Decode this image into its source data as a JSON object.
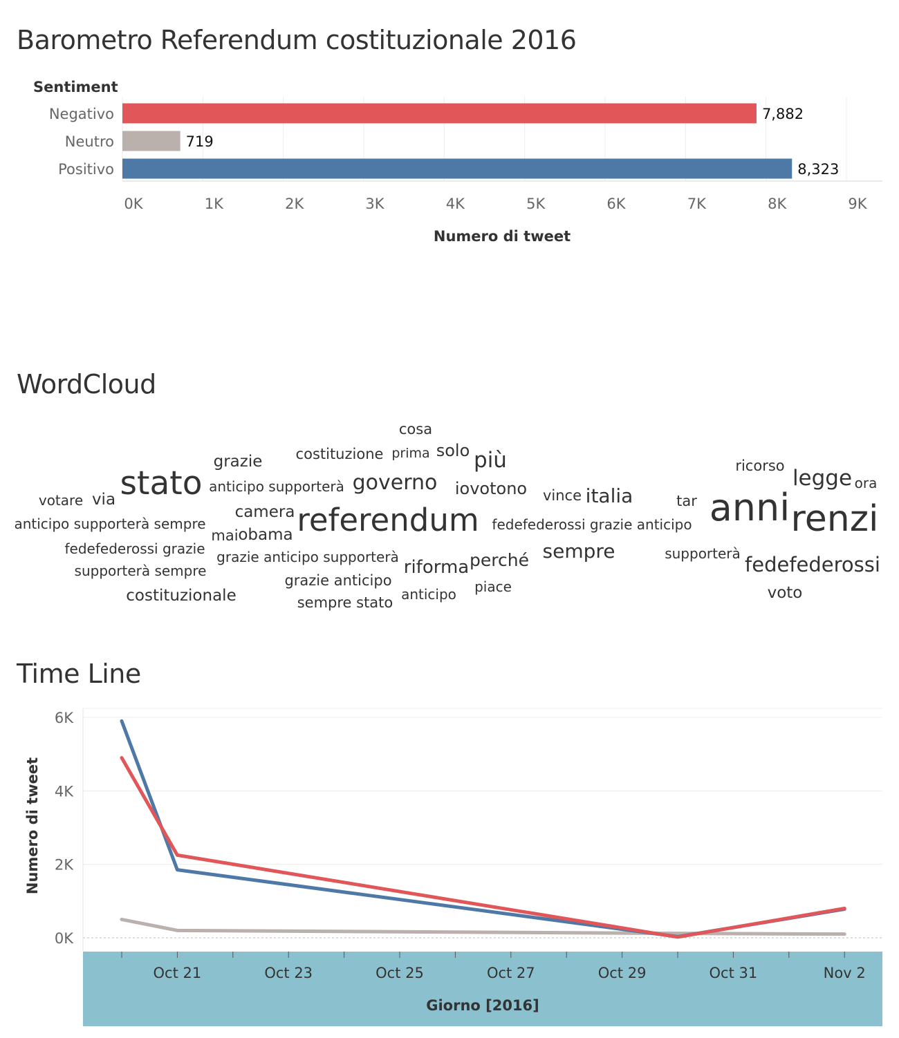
{
  "dashboard": {
    "title_barometer": "Barometro Referendum costituzionale 2016",
    "title_wordcloud": "WordCloud",
    "title_timeline": "Time Line"
  },
  "colors": {
    "negativo": "#e15759",
    "neutro": "#bab0ac",
    "positivo": "#4e79a7",
    "date_axis_band": "#8bc1ce"
  },
  "chart_data": [
    {
      "type": "bar",
      "orientation": "horizontal",
      "title": "Barometro Referendum costituzionale 2016",
      "category_header": "Sentiment",
      "categories": [
        "Negativo",
        "Neutro",
        "Positivo"
      ],
      "values": [
        7882,
        719,
        8323
      ],
      "value_labels": [
        "7,882",
        "719",
        "8,323"
      ],
      "xlabel": "Numero di tweet",
      "xlim": [
        0,
        9000
      ],
      "ticks": [
        "0K",
        "1K",
        "2K",
        "3K",
        "4K",
        "5K",
        "6K",
        "7K",
        "8K",
        "9K"
      ],
      "grid": true
    },
    {
      "type": "line",
      "title": "Time Line",
      "xlabel": "Giorno [2016]",
      "ylabel": "Numero di tweet",
      "x": [
        "2016-10-20",
        "2016-10-21",
        "2016-10-30",
        "2016-11-02"
      ],
      "xticks": [
        "Oct 21",
        "Oct 23",
        "Oct 25",
        "Oct 27",
        "Oct 29",
        "Oct 31",
        "Nov 2"
      ],
      "yticks": [
        "0K",
        "2K",
        "4K",
        "6K"
      ],
      "ylim": [
        0,
        6000
      ],
      "series": [
        {
          "key": "positivo",
          "values": [
            5900,
            1850,
            30,
            780
          ]
        },
        {
          "key": "negativo",
          "values": [
            4900,
            2250,
            20,
            800
          ]
        },
        {
          "key": "neutro",
          "values": [
            500,
            200,
            120,
            100
          ]
        }
      ],
      "grid": true
    }
  ],
  "wordcloud": {
    "words": [
      "cosa",
      "costituzione",
      "prima",
      "solo",
      "più",
      "grazie",
      "ricorso",
      "legge",
      "ora",
      "anticipo supporterà",
      "governo",
      "iovotono",
      "votare",
      "via",
      "stato",
      "vince",
      "italia",
      "tar",
      "anni",
      "camera",
      "referendum",
      "anticipo supporterà sempre",
      "fedefederossi grazie anticipo",
      "renzi",
      "mai",
      "obama",
      "sempre",
      "fedefederossi grazie",
      "grazie anticipo supporterà",
      "perché",
      "supporterà",
      "riforma",
      "supporterà sempre",
      "fedefederossi",
      "grazie anticipo",
      "piace",
      "costituzionale",
      "anticipo",
      "voto",
      "sempre stato"
    ]
  }
}
